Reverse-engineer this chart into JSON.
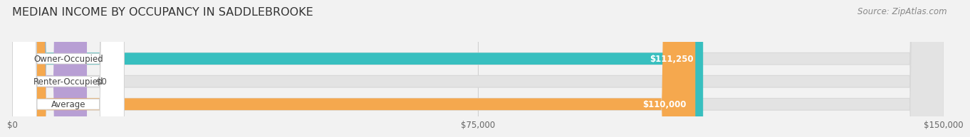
{
  "title": "MEDIAN INCOME BY OCCUPANCY IN SADDLEBROOKE",
  "source": "Source: ZipAtlas.com",
  "categories": [
    "Owner-Occupied",
    "Renter-Occupied",
    "Average"
  ],
  "values": [
    111250,
    0,
    110000
  ],
  "bar_colors": [
    "#38bfbf",
    "#b89fd4",
    "#f5a84e"
  ],
  "value_labels": [
    "$111,250",
    "$0",
    "$110,000"
  ],
  "xlim": [
    0,
    150000
  ],
  "xtick_labels": [
    "$0",
    "$75,000",
    "$150,000"
  ],
  "xtick_vals": [
    0,
    75000,
    150000
  ],
  "background_color": "#f2f2f2",
  "bar_bg_color": "#e3e3e3",
  "bar_bg_edge_color": "#d8d8d8",
  "label_box_color": "#ffffff",
  "title_fontsize": 11.5,
  "source_fontsize": 8.5,
  "bar_height": 0.52,
  "label_fontsize": 8.5,
  "tick_fontsize": 8.5,
  "renter_bar_width": 12000
}
